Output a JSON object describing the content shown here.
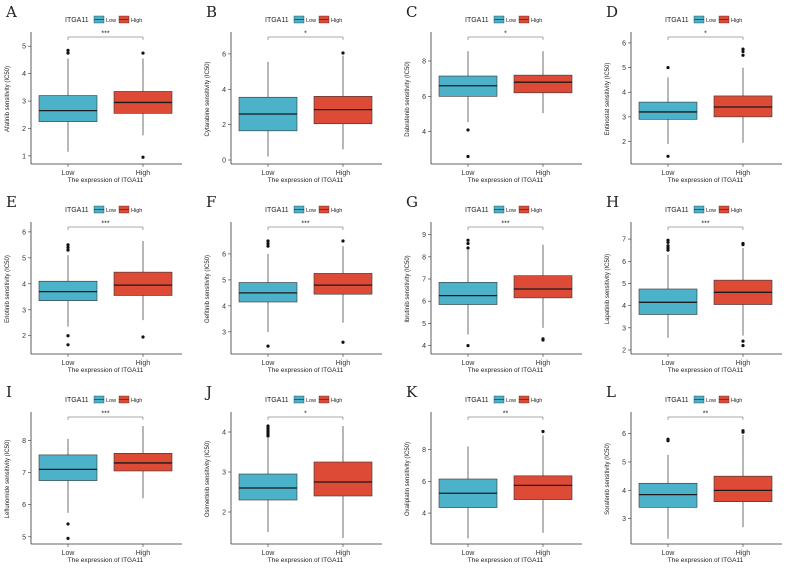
{
  "colors": {
    "low": "#4cb2c9",
    "high": "#dd4b37",
    "axis": "#333333",
    "whisker": "#333333"
  },
  "chart_data": [
    {
      "type": "boxplot",
      "panel": "A",
      "legend_title": "ITGA11",
      "legend_labels": [
        "Low",
        "High"
      ],
      "categories": [
        "Low",
        "High"
      ],
      "xlabel": "The expression of ITGA11",
      "ylabel": "Afatinib sensitivity (IC50)",
      "significance": "***",
      "ylim": [
        0.85,
        5.3
      ],
      "yticks": [
        1,
        2,
        3,
        4,
        5
      ],
      "boxes": [
        {
          "q1": 2.25,
          "median": 2.65,
          "q3": 3.2,
          "whisker_low": 1.15,
          "whisker_high": 4.55,
          "outliers": [
            4.75,
            4.85
          ]
        },
        {
          "q1": 2.55,
          "median": 2.95,
          "q3": 3.35,
          "whisker_low": 1.75,
          "whisker_high": 4.55,
          "outliers": [
            4.75,
            0.95
          ]
        }
      ]
    },
    {
      "type": "boxplot",
      "panel": "B",
      "legend_title": "ITGA11",
      "legend_labels": [
        "Low",
        "High"
      ],
      "categories": [
        "Low",
        "High"
      ],
      "xlabel": "The expression of ITGA11",
      "ylabel": "Cytarabine sensitivity (IC50)",
      "significance": "*",
      "ylim": [
        0,
        6.9
      ],
      "yticks": [
        0,
        2,
        4,
        6
      ],
      "boxes": [
        {
          "q1": 1.65,
          "median": 2.6,
          "q3": 3.55,
          "whisker_low": 0.2,
          "whisker_high": 5.55,
          "outliers": []
        },
        {
          "q1": 2.05,
          "median": 2.85,
          "q3": 3.6,
          "whisker_low": 0.6,
          "whisker_high": 5.9,
          "outliers": [
            6.05
          ]
        }
      ]
    },
    {
      "type": "boxplot",
      "panel": "C",
      "legend_title": "ITGA11",
      "legend_labels": [
        "Low",
        "High"
      ],
      "categories": [
        "Low",
        "High"
      ],
      "xlabel": "The expression of ITGA11",
      "ylabel": "Dabrafenib sensitivity (IC50)",
      "significance": "*",
      "ylim": [
        2.4,
        9.3
      ],
      "yticks": [
        4,
        6,
        8
      ],
      "boxes": [
        {
          "q1": 6.0,
          "median": 6.6,
          "q3": 7.15,
          "whisker_low": 4.55,
          "whisker_high": 8.55,
          "outliers": [
            4.1,
            2.6
          ]
        },
        {
          "q1": 6.2,
          "median": 6.8,
          "q3": 7.2,
          "whisker_low": 5.05,
          "whisker_high": 8.55,
          "outliers": []
        }
      ]
    },
    {
      "type": "boxplot",
      "panel": "D",
      "legend_title": "ITGA11",
      "legend_labels": [
        "Low",
        "High"
      ],
      "categories": [
        "Low",
        "High"
      ],
      "xlabel": "The expression of ITGA11",
      "ylabel": "Entinostat sensitivity (IC50)",
      "significance": "*",
      "ylim": [
        1.25,
        6.2
      ],
      "yticks": [
        2,
        3,
        4,
        5,
        6
      ],
      "boxes": [
        {
          "q1": 2.9,
          "median": 3.2,
          "q3": 3.6,
          "whisker_low": 1.9,
          "whisker_high": 4.6,
          "outliers": [
            5.0,
            1.4
          ]
        },
        {
          "q1": 3.0,
          "median": 3.4,
          "q3": 3.85,
          "whisker_low": 1.95,
          "whisker_high": 5.0,
          "outliers": [
            5.5,
            5.65,
            5.75
          ]
        }
      ]
    },
    {
      "type": "boxplot",
      "panel": "E",
      "legend_title": "ITGA11",
      "legend_labels": [
        "Low",
        "High"
      ],
      "categories": [
        "Low",
        "High"
      ],
      "xlabel": "The expression of ITGA11",
      "ylabel": "Erlotinib sensitivity (IC50)",
      "significance": "***",
      "ylim": [
        1.45,
        6.15
      ],
      "yticks": [
        2,
        3,
        4,
        5,
        6
      ],
      "boxes": [
        {
          "q1": 3.35,
          "median": 3.7,
          "q3": 4.1,
          "whisker_low": 2.35,
          "whisker_high": 5.1,
          "outliers": [
            5.3,
            5.4,
            5.5,
            2.0,
            1.65
          ]
        },
        {
          "q1": 3.55,
          "median": 3.95,
          "q3": 4.45,
          "whisker_low": 2.6,
          "whisker_high": 5.65,
          "outliers": [
            1.95
          ]
        }
      ]
    },
    {
      "type": "boxplot",
      "panel": "F",
      "legend_title": "ITGA11",
      "legend_labels": [
        "Low",
        "High"
      ],
      "categories": [
        "Low",
        "High"
      ],
      "xlabel": "The expression of ITGA11",
      "ylabel": "Gefitinib sensitivity (IC50)",
      "significance": "***",
      "ylim": [
        2.3,
        7.0
      ],
      "yticks": [
        3,
        4,
        5,
        6
      ],
      "boxes": [
        {
          "q1": 4.15,
          "median": 4.5,
          "q3": 4.9,
          "whisker_low": 3.0,
          "whisker_high": 6.0,
          "outliers": [
            6.3,
            6.4,
            6.5,
            2.45
          ]
        },
        {
          "q1": 4.45,
          "median": 4.8,
          "q3": 5.25,
          "whisker_low": 3.35,
          "whisker_high": 6.3,
          "outliers": [
            6.5,
            2.6
          ]
        }
      ]
    },
    {
      "type": "boxplot",
      "panel": "G",
      "legend_title": "ITGA11",
      "legend_labels": [
        "Low",
        "High"
      ],
      "categories": [
        "Low",
        "High"
      ],
      "xlabel": "The expression of ITGA11",
      "ylabel": "Ibrutinib sensitivity (IC50)",
      "significance": "***",
      "ylim": [
        3.8,
        9.3
      ],
      "yticks": [
        4,
        5,
        6,
        7,
        8,
        9
      ],
      "boxes": [
        {
          "q1": 5.85,
          "median": 6.25,
          "q3": 6.85,
          "whisker_low": 4.5,
          "whisker_high": 8.3,
          "outliers": [
            8.4,
            8.6,
            8.75,
            4.0
          ]
        },
        {
          "q1": 6.15,
          "median": 6.55,
          "q3": 7.15,
          "whisker_low": 4.8,
          "whisker_high": 8.55,
          "outliers": [
            4.25,
            4.3
          ]
        }
      ]
    },
    {
      "type": "boxplot",
      "panel": "H",
      "legend_title": "ITGA11",
      "legend_labels": [
        "Low",
        "High"
      ],
      "categories": [
        "Low",
        "High"
      ],
      "xlabel": "The expression of ITGA11",
      "ylabel": "Lapatinib sensitivity (IC50)",
      "significance": "***",
      "ylim": [
        2.0,
        7.5
      ],
      "yticks": [
        2,
        3,
        4,
        5,
        6,
        7
      ],
      "boxes": [
        {
          "q1": 3.6,
          "median": 4.15,
          "q3": 4.75,
          "whisker_low": 2.55,
          "whisker_high": 6.3,
          "outliers": [
            6.5,
            6.6,
            6.7,
            6.85,
            6.95
          ]
        },
        {
          "q1": 4.05,
          "median": 4.6,
          "q3": 5.15,
          "whisker_low": 2.65,
          "whisker_high": 6.6,
          "outliers": [
            6.75,
            6.8,
            2.4,
            2.2
          ]
        }
      ]
    },
    {
      "type": "boxplot",
      "panel": "I",
      "legend_title": "ITGA11",
      "legend_labels": [
        "Low",
        "High"
      ],
      "categories": [
        "Low",
        "High"
      ],
      "xlabel": "The expression of ITGA11",
      "ylabel": "Leflunomide sensitivity (IC50)",
      "significance": "***",
      "ylim": [
        4.9,
        8.7
      ],
      "yticks": [
        5,
        6,
        7,
        8
      ],
      "boxes": [
        {
          "q1": 6.75,
          "median": 7.1,
          "q3": 7.55,
          "whisker_low": 5.75,
          "whisker_high": 8.05,
          "outliers": [
            5.4,
            4.95
          ]
        },
        {
          "q1": 7.05,
          "median": 7.3,
          "q3": 7.6,
          "whisker_low": 6.2,
          "whisker_high": 8.45,
          "outliers": []
        }
      ]
    },
    {
      "type": "boxplot",
      "panel": "J",
      "legend_title": "ITGA11",
      "legend_labels": [
        "Low",
        "High"
      ],
      "categories": [
        "Low",
        "High"
      ],
      "xlabel": "The expression of ITGA11",
      "ylabel": "Osimertinib sensitivity (IC50)",
      "significance": "*",
      "ylim": [
        1.3,
        4.35
      ],
      "yticks": [
        2,
        3,
        4
      ],
      "boxes": [
        {
          "q1": 2.3,
          "median": 2.6,
          "q3": 2.95,
          "whisker_low": 1.5,
          "whisker_high": 3.85,
          "outliers": [
            3.9,
            3.95,
            4.0,
            4.05,
            4.1,
            4.15
          ]
        },
        {
          "q1": 2.4,
          "median": 2.75,
          "q3": 3.25,
          "whisker_low": 1.35,
          "whisker_high": 4.15,
          "outliers": []
        }
      ]
    },
    {
      "type": "boxplot",
      "panel": "K",
      "legend_title": "ITGA11",
      "legend_labels": [
        "Low",
        "High"
      ],
      "categories": [
        "Low",
        "High"
      ],
      "xlabel": "The expression of ITGA11",
      "ylabel": "Oxaliplatin sensitivity (IC50)",
      "significance": "**",
      "ylim": [
        2.3,
        10.0
      ],
      "yticks": [
        4,
        6,
        8
      ],
      "boxes": [
        {
          "q1": 4.35,
          "median": 5.25,
          "q3": 6.15,
          "whisker_low": 2.4,
          "whisker_high": 8.2,
          "outliers": []
        },
        {
          "q1": 4.85,
          "median": 5.75,
          "q3": 6.35,
          "whisker_low": 2.75,
          "whisker_high": 8.9,
          "outliers": [
            9.15
          ]
        }
      ]
    },
    {
      "type": "boxplot",
      "panel": "L",
      "legend_title": "ITGA11",
      "legend_labels": [
        "Low",
        "High"
      ],
      "categories": [
        "Low",
        "High"
      ],
      "xlabel": "The expression of ITGA11",
      "ylabel": "Sorafenib sensitivity (IC50)",
      "significance": "**",
      "ylim": [
        2.25,
        6.55
      ],
      "yticks": [
        3,
        4,
        5,
        6
      ],
      "boxes": [
        {
          "q1": 3.4,
          "median": 3.85,
          "q3": 4.25,
          "whisker_low": 2.3,
          "whisker_high": 5.25,
          "outliers": [
            5.75,
            5.8
          ]
        },
        {
          "q1": 3.6,
          "median": 4.0,
          "q3": 4.5,
          "whisker_low": 2.7,
          "whisker_high": 5.95,
          "outliers": [
            6.05,
            6.1
          ]
        }
      ]
    }
  ]
}
